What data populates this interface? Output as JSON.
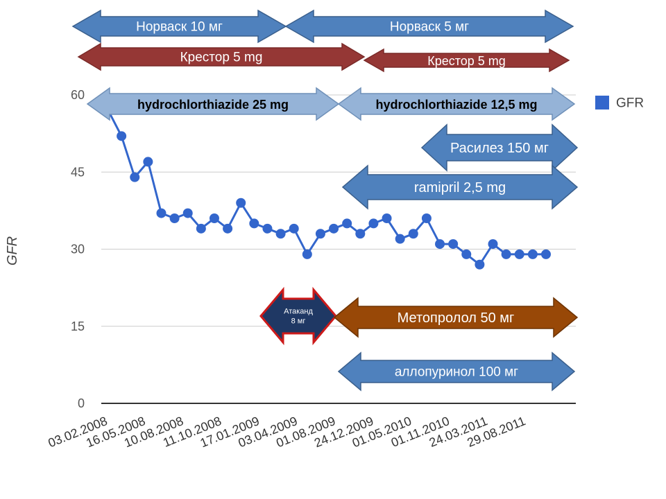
{
  "chart_data": {
    "type": "line",
    "ylabel": "GFR",
    "ylim": [
      0,
      60
    ],
    "y_ticks": [
      "0",
      "15",
      "30",
      "45",
      "60"
    ],
    "x_tick_labels": [
      "03.02.2008",
      "16.05.2008",
      "10.08.2008",
      "11.10.2008",
      "17.01.2009",
      "03.04.2009",
      "01.08.2009",
      "24.12.2009",
      "01.05.2010",
      "01.11.2010",
      "24.03.2011",
      "29.08.2011"
    ],
    "grid": true,
    "legend_position": "right",
    "series": [
      {
        "name": "GFR",
        "color": "#3366cc",
        "values": [
          57,
          52,
          44,
          47,
          37,
          36,
          37,
          34,
          36,
          34,
          39,
          35,
          34,
          33,
          34,
          29,
          33,
          34,
          35,
          33,
          35,
          36,
          32,
          33,
          36,
          31,
          31,
          29,
          27,
          31,
          29,
          29,
          29,
          29
        ]
      }
    ]
  },
  "medications": [
    {
      "label": "Норваск 10 мг",
      "color": "#4f81bd"
    },
    {
      "label": "Норваск 5 мг",
      "color": "#4f81bd"
    },
    {
      "label": "Крестор 5 mg",
      "color": "#953735"
    },
    {
      "label": "Крестор 5 mg",
      "color": "#953735"
    },
    {
      "label": "hydrochlorthiazide 25 mg",
      "color": "#95b3d7"
    },
    {
      "label": "hydrochlorthiazide 12,5 mg",
      "color": "#95b3d7"
    },
    {
      "label": "Расилез 150 мг",
      "color": "#4f81bd"
    },
    {
      "label": "ramipril 2,5 mg",
      "color": "#4f81bd"
    },
    {
      "label": "Атаканд 8 мг",
      "color": "#1f3864"
    },
    {
      "label": "Метопролол 50 мг",
      "color": "#984807"
    },
    {
      "label": "аллопуринол 100 мг",
      "color": "#4f81bd"
    }
  ]
}
